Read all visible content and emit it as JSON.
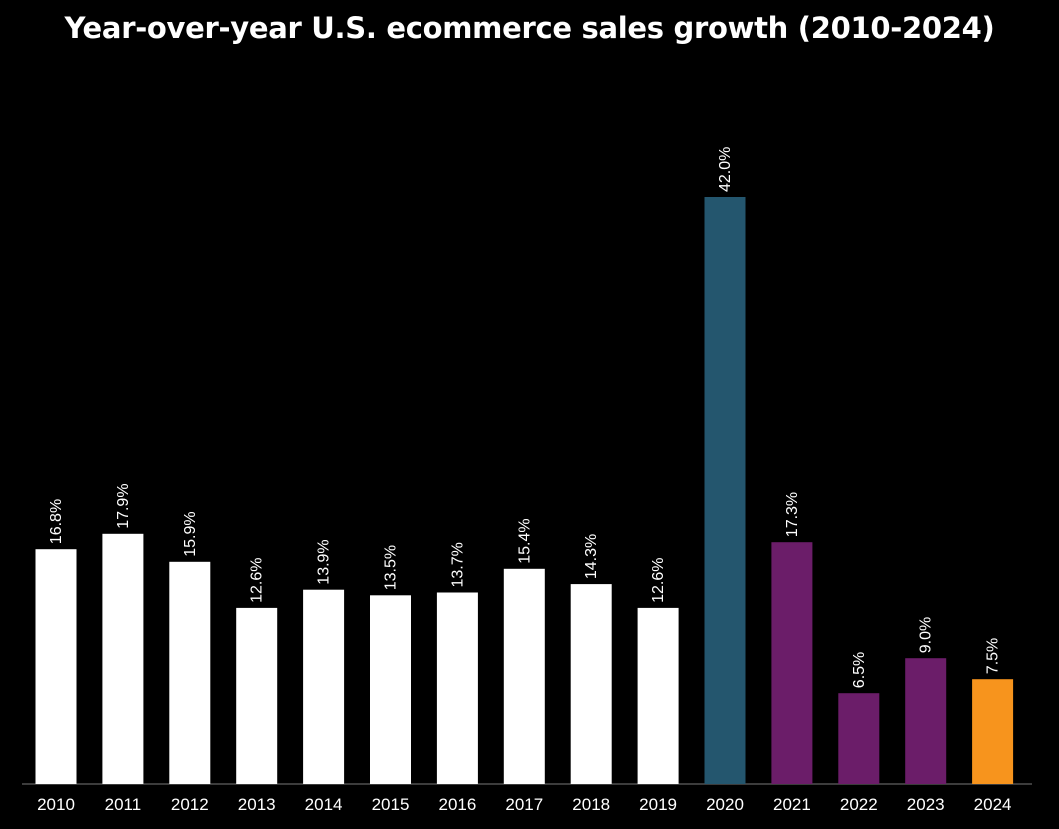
{
  "chart_data": {
    "type": "bar",
    "title": "Year-over-year U.S. ecommerce sales growth  (2010-2024)",
    "xlabel": "",
    "ylabel": "",
    "ylim": [
      0,
      42.0
    ],
    "grid": false,
    "legend": "none",
    "categories": [
      "2010",
      "2011",
      "2012",
      "2013",
      "2014",
      "2015",
      "2016",
      "2017",
      "2018",
      "2019",
      "2020",
      "2021",
      "2022",
      "2023",
      "2024"
    ],
    "values": [
      16.8,
      17.9,
      15.9,
      12.6,
      13.9,
      13.5,
      13.7,
      15.4,
      14.3,
      12.6,
      42.0,
      17.3,
      6.5,
      9.0,
      7.5
    ],
    "data_labels": [
      "16.8%",
      "17.9%",
      "15.9%",
      "12.6%",
      "13.9%",
      "13.5%",
      "13.7%",
      "15.4%",
      "14.3%",
      "12.6%",
      "42.0%",
      "17.3%",
      "6.5%",
      "9.0%",
      "7.5%"
    ],
    "bar_colors": [
      "#ffffff",
      "#ffffff",
      "#ffffff",
      "#ffffff",
      "#ffffff",
      "#ffffff",
      "#ffffff",
      "#ffffff",
      "#ffffff",
      "#ffffff",
      "#24566e",
      "#6b1d69",
      "#6b1d69",
      "#6b1d69",
      "#f7941d"
    ]
  },
  "colors": {
    "background": "#000000",
    "text": "#ffffff",
    "axis": "#777777"
  }
}
